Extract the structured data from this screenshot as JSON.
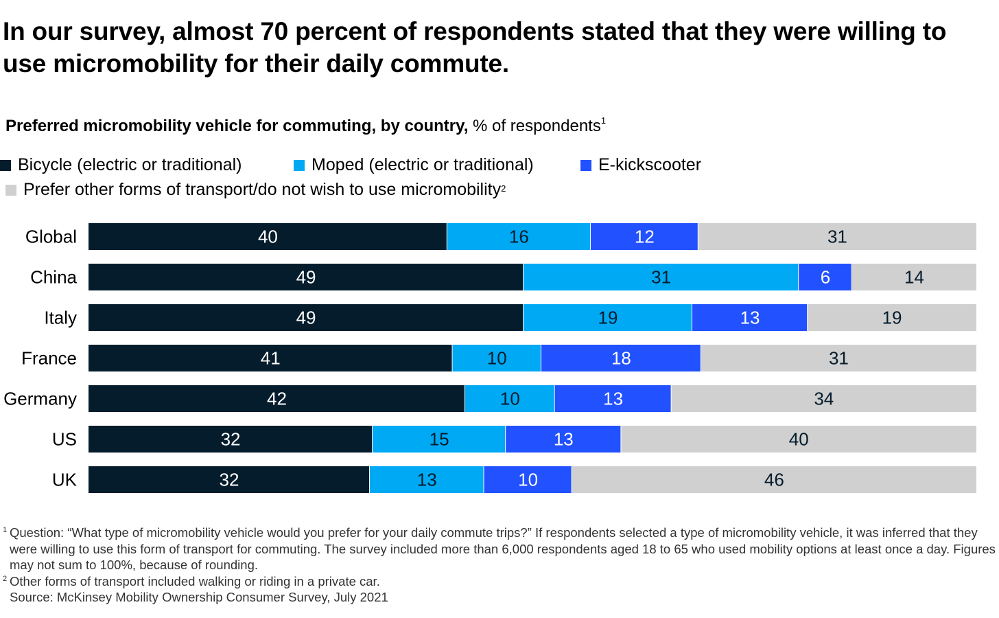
{
  "title": "In our survey, almost 70 percent of respondents stated that they were willing to use micromobility for their daily commute.",
  "subtitle": {
    "bold": "Preferred micromobility vehicle for commuting, by country,",
    "normal": " % of respondents",
    "sup": "1"
  },
  "legend": [
    {
      "label": "Bicycle (electric or traditional)",
      "color": "#051c2c"
    },
    {
      "label": "Moped (electric or traditional)",
      "color": "#00a9f4"
    },
    {
      "label": "E-kickscooter",
      "color": "#2251ff"
    },
    {
      "label": "Prefer other forms of transport/do not wish to use micromobility",
      "color": "#d0d0d0",
      "sup": "2"
    }
  ],
  "chart_data": {
    "type": "bar",
    "orientation": "horizontal",
    "stacked": true,
    "categories": [
      "Global",
      "China",
      "Italy",
      "France",
      "Germany",
      "US",
      "UK"
    ],
    "series": [
      {
        "name": "Bicycle (electric or traditional)",
        "color": "#051c2c",
        "label_color": "#ffffff",
        "values": [
          40,
          49,
          49,
          41,
          42,
          32,
          32
        ]
      },
      {
        "name": "Moped (electric or traditional)",
        "color": "#00a9f4",
        "label_color": "#051c2c",
        "values": [
          16,
          31,
          19,
          10,
          10,
          15,
          13
        ]
      },
      {
        "name": "E-kickscooter",
        "color": "#2251ff",
        "label_color": "#ffffff",
        "values": [
          12,
          6,
          13,
          18,
          13,
          13,
          10
        ]
      },
      {
        "name": "Prefer other forms of transport/do not wish to use micromobility",
        "color": "#d0d0d0",
        "label_color": "#051c2c",
        "values": [
          31,
          14,
          19,
          31,
          34,
          40,
          46
        ]
      }
    ],
    "unit": "% of respondents",
    "grid": false
  },
  "footnotes": {
    "fn1_mark": "1",
    "fn1": "Question: “What type of micromobility vehicle would you prefer for your daily commute trips?” If respondents selected a type of micromobility vehicle, it was inferred that they were willing to use this form of transport for commuting. The survey included more than 6,000 respondents aged 18 to 65 who used mobility options at least once a day. Figures may not sum to 100%, because of rounding.",
    "fn2_mark": "2",
    "fn2": "Other forms of transport included walking or riding in a private car.",
    "source": "Source: McKinsey Mobility Ownership Consumer Survey, July 2021"
  }
}
